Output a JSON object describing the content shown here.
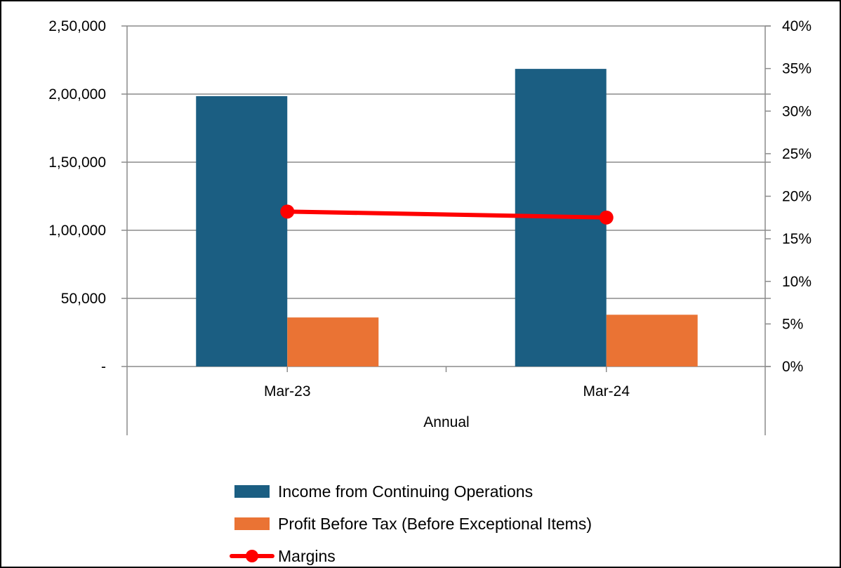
{
  "chart_data": {
    "type": "bar",
    "categories": [
      "Mar-23",
      "Mar-24"
    ],
    "xlabel": "Annual",
    "y_left": {
      "range": [
        0,
        250000
      ],
      "ticks": [
        0,
        50000,
        100000,
        150000,
        200000,
        250000
      ],
      "tick_labels": [
        "-",
        "50,000",
        "1,00,000",
        "1,50,000",
        "2,00,000",
        "2,50,000"
      ]
    },
    "y_right": {
      "range": [
        0,
        40
      ],
      "ticks": [
        0,
        5,
        10,
        15,
        20,
        25,
        30,
        35,
        40
      ],
      "tick_labels": [
        "0%",
        "5%",
        "10%",
        "15%",
        "20%",
        "25%",
        "30%",
        "35%",
        "40%"
      ]
    },
    "grid": true,
    "legend_position": "bottom",
    "series": [
      {
        "name": "Income from Continuing Operations",
        "type": "bar",
        "axis": "left",
        "color": "#1b5e82",
        "values": [
          198500,
          218500
        ]
      },
      {
        "name": "Profit Before Tax (Before Exceptional Items)",
        "type": "bar",
        "axis": "left",
        "color": "#ea7334",
        "values": [
          36000,
          38000
        ]
      },
      {
        "name": "Margins",
        "type": "line",
        "axis": "right",
        "color": "#ff0000",
        "values": [
          18.2,
          17.5
        ]
      }
    ]
  }
}
